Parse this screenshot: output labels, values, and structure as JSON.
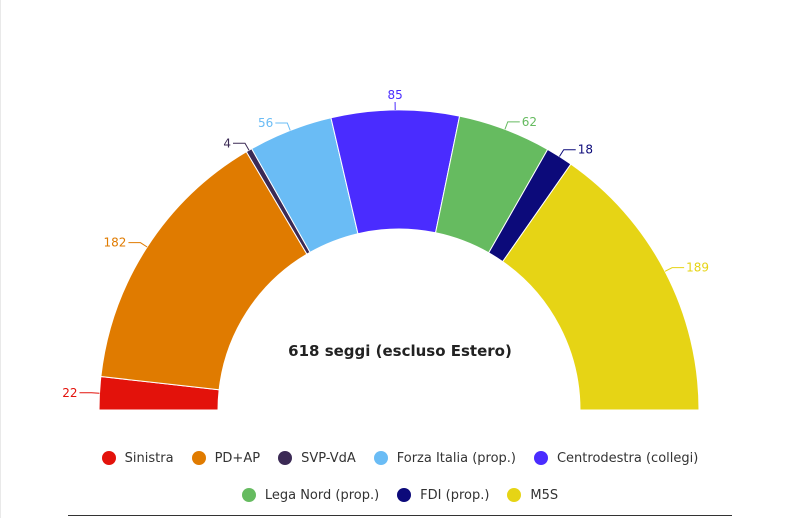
{
  "chart_data": {
    "type": "parliament",
    "title": "618 seggi (escluso Estero)",
    "series": [
      {
        "name": "Sinistra",
        "value": 22,
        "color": "#e3120b"
      },
      {
        "name": "PD+AP",
        "value": 182,
        "color": "#e07b00"
      },
      {
        "name": "SVP-VdA",
        "value": 4,
        "color": "#3b2a55"
      },
      {
        "name": "Forza Italia (prop.)",
        "value": 56,
        "color": "#6abcf5"
      },
      {
        "name": "Centrodestra (collegi)",
        "value": 85,
        "color": "#4a2cff"
      },
      {
        "name": "Lega Nord (prop.)",
        "value": 62,
        "color": "#66bb60"
      },
      {
        "name": "FDI (prop.)",
        "value": 18,
        "color": "#0c0a7a"
      },
      {
        "name": "M5S",
        "value": 189,
        "color": "#e6d415"
      }
    ],
    "legend_position": "bottom"
  }
}
